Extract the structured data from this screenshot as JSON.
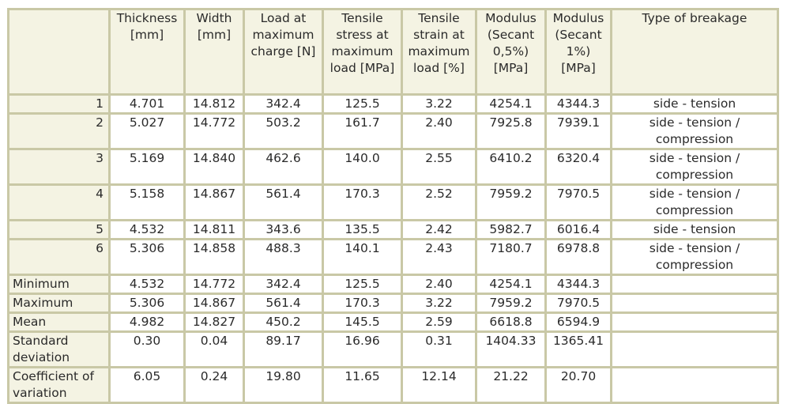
{
  "headers": [
    "Thickness [mm]",
    "Width [mm]",
    "Load at maximum charge [N]",
    "Tensile stress at maximum load [MPa]",
    "Tensile strain at maximum load [%]",
    "Modulus (Secant 0,5%) [MPa]",
    "Modulus (Secant 1%) [MPa]",
    "Type of breakage"
  ],
  "rows": [
    {
      "label": "1",
      "thickness": "4.701",
      "width": "14.812",
      "load": "342.4",
      "stress": "125.5",
      "strain": "3.22",
      "mod05": "4254.1",
      "mod1": "4344.3",
      "breakage": "side - tension"
    },
    {
      "label": "2",
      "thickness": "5.027",
      "width": "14.772",
      "load": "503.2",
      "stress": "161.7",
      "strain": "2.40",
      "mod05": "7925.8",
      "mod1": "7939.1",
      "breakage": "side - tension / compression"
    },
    {
      "label": "3",
      "thickness": "5.169",
      "width": "14.840",
      "load": "462.6",
      "stress": "140.0",
      "strain": "2.55",
      "mod05": "6410.2",
      "mod1": "6320.4",
      "breakage": "side - tension / compression"
    },
    {
      "label": "4",
      "thickness": "5.158",
      "width": "14.867",
      "load": "561.4",
      "stress": "170.3",
      "strain": "2.52",
      "mod05": "7959.2",
      "mod1": "7970.5",
      "breakage": "side - tension / compression"
    },
    {
      "label": "5",
      "thickness": "4.532",
      "width": "14.811",
      "load": "343.6",
      "stress": "135.5",
      "strain": "2.42",
      "mod05": "5982.7",
      "mod1": "6016.4",
      "breakage": "side - tension"
    },
    {
      "label": "6",
      "thickness": "5.306",
      "width": "14.858",
      "load": "488.3",
      "stress": "140.1",
      "strain": "2.43",
      "mod05": "7180.7",
      "mod1": "6978.8",
      "breakage": "side - tension / compression"
    }
  ],
  "stats": [
    {
      "label": "Minimum",
      "thickness": "4.532",
      "width": "14.772",
      "load": "342.4",
      "stress": "125.5",
      "strain": "2.40",
      "mod05": "4254.1",
      "mod1": "4344.3"
    },
    {
      "label": "Maximum",
      "thickness": "5.306",
      "width": "14.867",
      "load": "561.4",
      "stress": "170.3",
      "strain": "3.22",
      "mod05": "7959.2",
      "mod1": "7970.5"
    },
    {
      "label": "Mean",
      "thickness": "4.982",
      "width": "14.827",
      "load": "450.2",
      "stress": "145.5",
      "strain": "2.59",
      "mod05": "6618.8",
      "mod1": "6594.9"
    },
    {
      "label": "Standard deviation",
      "thickness": "0.30",
      "width": "0.04",
      "load": "89.17",
      "stress": "16.96",
      "strain": "0.31",
      "mod05": "1404.33",
      "mod1": "1365.41"
    },
    {
      "label": "Coefficient of variation",
      "thickness": "6.05",
      "width": "0.24",
      "load": "19.80",
      "stress": "11.65",
      "strain": "12.14",
      "mod05": "21.22",
      "mod1": "20.70"
    }
  ]
}
